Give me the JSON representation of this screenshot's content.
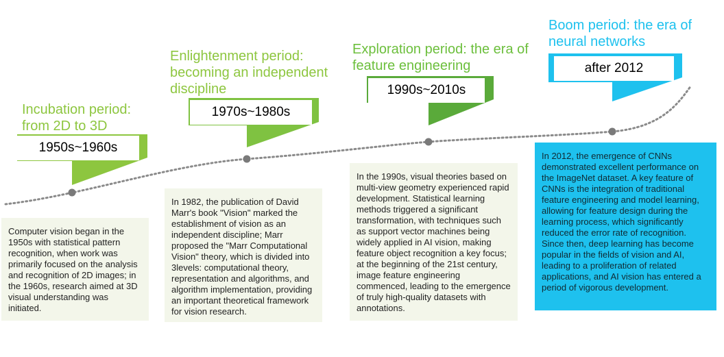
{
  "colors": {
    "light_green": "#8dc63f",
    "mid_green": "#6cbf3c",
    "dark_green": "#5aaa3a",
    "cyan": "#1ec1ee",
    "timeline": "#888888"
  },
  "periods": [
    {
      "title_lines": [
        "Incubation period:",
        "from 2D to 3D"
      ],
      "label": "1950s~1960s",
      "description": "Computer vision began in the 1950s with statistical pattern recognition, when work was primarily focused on the analysis and recognition of 2D images; in the 1960s, research aimed at 3D visual understanding was initiated."
    },
    {
      "title_lines": [
        "Enlightenment period:",
        "becoming an independent",
        "discipline"
      ],
      "label": "1970s~1980s",
      "description": "In 1982, the publication of David Marr's book \"Vision\" marked the establishment of vision as an independent discipline; Marr proposed the \"Marr Computational Vision\" theory, which is divided into 3levels: computational theory, representation and algorithms, and algorithm implementation, providing an important theoretical framework for vision research."
    },
    {
      "title_lines": [
        "Exploration period: the era of",
        "feature engineering"
      ],
      "label": "1990s~2010s",
      "description": "In the 1990s, visual theories based on multi-view geometry experienced rapid development. Statistical learning methods triggered a significant transformation, with techniques such as support vector machines being widely applied in AI vision, making feature object recognition a key focus; at the beginning of the 21st century, image feature engineering commenced, leading to the emergence of truly high-quality datasets with annotations."
    },
    {
      "title_lines": [
        "Boom period: the era of",
        "neural networks"
      ],
      "label": "after 2012",
      "description": "In 2012, the emergence of CNNs demonstrated excellent performance on the ImageNet dataset. A key feature of CNNs is the integration of traditional feature engineering and model learning, allowing for feature design during the learning process, which significantly reduced the error rate of recognition. Since then, deep learning has become popular in the fields of vision and AI, leading to a proliferation of related applications, and AI vision has entered a period of vigorous development."
    }
  ]
}
